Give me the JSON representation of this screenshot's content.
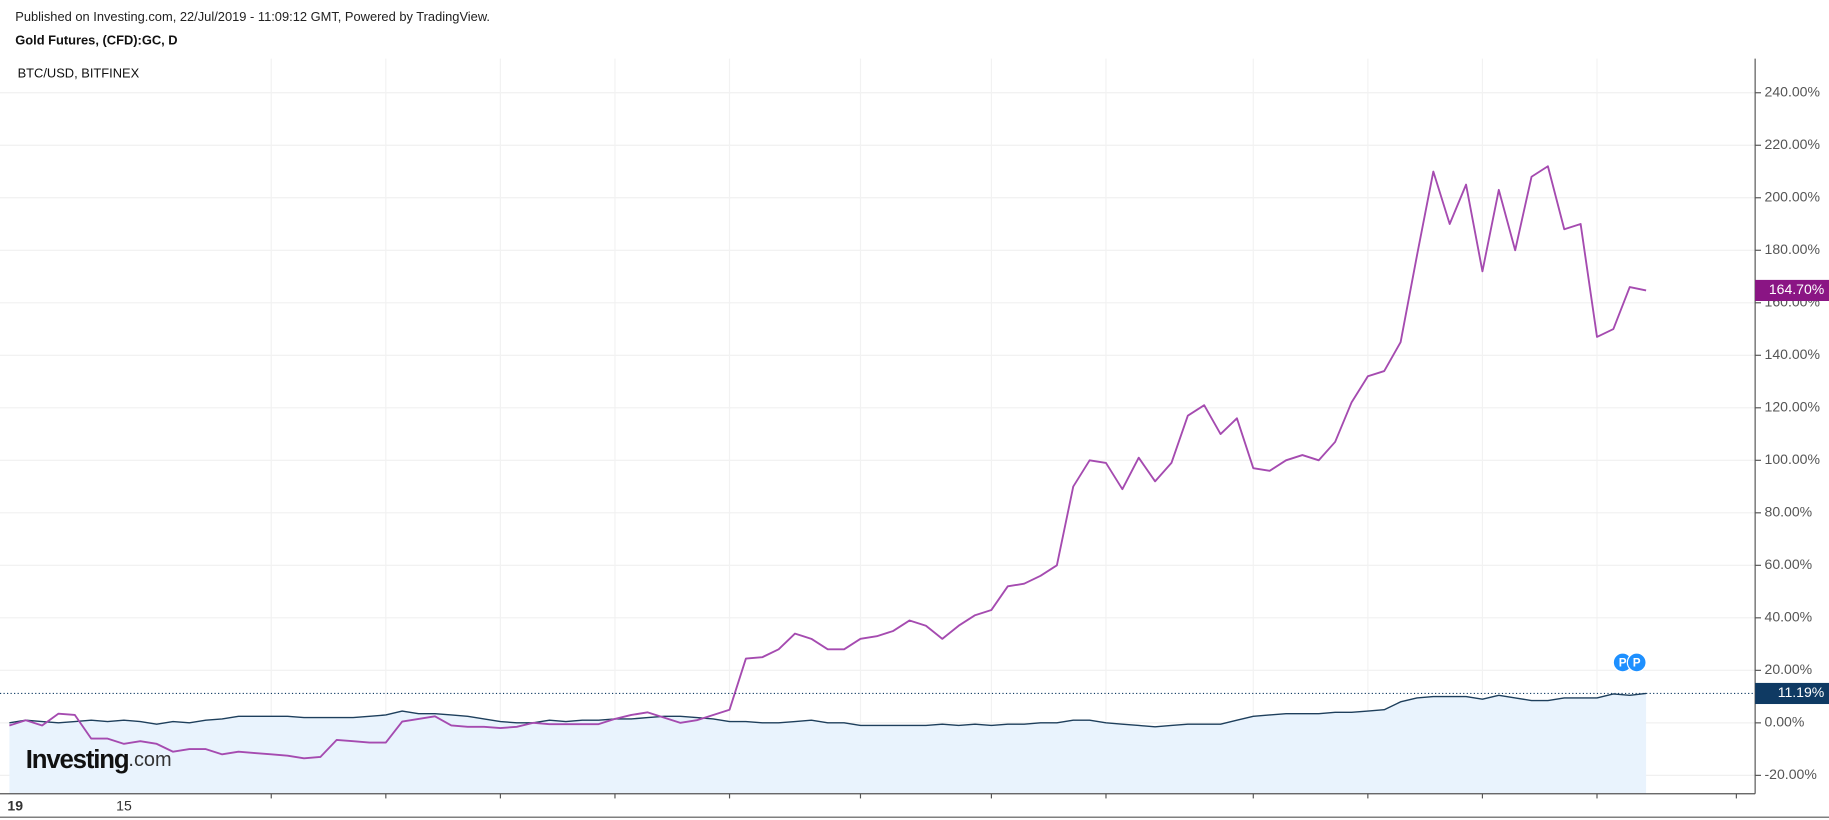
{
  "header": {
    "published": "Published on Investing.com, 22/Jul/2019 - 11:09:12 GMT, Powered by TradingView.",
    "instrument": "Gold Futures, (CFD):GC, D"
  },
  "logo": {
    "name": "Investing",
    "suffix": ".com"
  },
  "markers": [
    "P",
    "P"
  ],
  "chart_data": {
    "type": "line",
    "subtitle": "BTC/USD, BITFINEX",
    "categories": [
      "19",
      null,
      null,
      null,
      null,
      null,
      null,
      "15",
      null,
      null,
      null,
      null,
      null,
      null,
      null,
      null,
      null,
      null,
      null,
      null,
      null,
      null,
      null,
      null,
      null,
      null,
      null,
      null,
      null,
      null,
      null,
      null,
      null,
      null,
      null,
      null,
      null,
      null,
      null,
      null,
      null,
      null,
      null,
      null,
      null,
      null,
      null,
      null,
      null,
      null,
      null,
      null,
      null,
      null,
      null,
      null,
      null,
      null,
      null,
      null,
      null,
      null,
      null,
      null,
      null,
      null,
      null,
      null,
      null,
      null,
      null,
      null,
      null,
      null,
      null,
      null,
      null,
      null,
      null,
      null,
      null,
      null,
      null,
      null,
      null,
      null,
      null,
      null,
      null,
      null,
      null,
      null,
      null,
      null,
      null,
      null,
      null,
      null,
      null,
      null,
      null
    ],
    "series": [
      {
        "name": "BTC/USD, BITFINEX",
        "color": "#a54bb0",
        "label_color": "#8a1584",
        "values": [
          -1,
          1,
          -1,
          3.5,
          3,
          -6,
          -6,
          -8,
          -7,
          -8,
          -11,
          -10,
          -10,
          -12,
          -11,
          -11.5,
          -12,
          -12.5,
          -13.5,
          -13,
          -6.5,
          -7,
          -7.5,
          -7.5,
          0.5,
          1.5,
          2.5,
          -1,
          -1.5,
          -1.5,
          -2,
          -1.5,
          0,
          -0.5,
          -0.5,
          -0.5,
          -0.5,
          1.5,
          3,
          4,
          2,
          0,
          1,
          3,
          5,
          24.5,
          25,
          28,
          34,
          32,
          28,
          28,
          32,
          33,
          35,
          39,
          37,
          32,
          37,
          41,
          43,
          52,
          53,
          56,
          60,
          90,
          100,
          99,
          89,
          101,
          92,
          99,
          117,
          121,
          110,
          116,
          97,
          96,
          100,
          102,
          100,
          107,
          122,
          132,
          134,
          145,
          178,
          210,
          190,
          205,
          172,
          203,
          180,
          208,
          212,
          188,
          190,
          147,
          150,
          166,
          164.7
        ],
        "value_labels": [
          null,
          null,
          null,
          null,
          null,
          null,
          null,
          null,
          null,
          null,
          null,
          null,
          null,
          null,
          null,
          null,
          null,
          null,
          null,
          null,
          null,
          null,
          null,
          null,
          null,
          null,
          null,
          null,
          null,
          null,
          null,
          null,
          null,
          null,
          null,
          null,
          null,
          null,
          null,
          null,
          null,
          null,
          null,
          null,
          null,
          null,
          null,
          null,
          null,
          null,
          null,
          null,
          null,
          null,
          null,
          null,
          null,
          null,
          null,
          null,
          null,
          null,
          null,
          null,
          null,
          null,
          null,
          null,
          null,
          null,
          null,
          null,
          null,
          null,
          null,
          null,
          null,
          null,
          null,
          null,
          null,
          null,
          null,
          null,
          null,
          null,
          null,
          null,
          null,
          null,
          null,
          null,
          null,
          null,
          null,
          null,
          null,
          null,
          null,
          null,
          "164.70%"
        ]
      },
      {
        "name": "Gold Futures, (CFD):GC, D",
        "color": "#1e3f5c",
        "label_color": "#0f3a63",
        "area": "#e9f3fd",
        "values": [
          0,
          1,
          0.5,
          0,
          0.5,
          1,
          0.5,
          1,
          0.5,
          -0.5,
          0.5,
          0,
          1,
          1.5,
          2.5,
          2.5,
          2.5,
          2.5,
          2,
          2,
          2,
          2,
          2.5,
          3,
          4.5,
          3.5,
          3.5,
          3,
          2.5,
          1.5,
          0.5,
          0,
          0,
          1,
          0.5,
          1,
          1,
          1.5,
          1.5,
          2,
          2.5,
          2.5,
          2,
          1.5,
          0.5,
          0.5,
          0,
          0,
          0.5,
          1,
          0,
          0,
          -1,
          -1,
          -1,
          -1,
          -1,
          -0.5,
          -1,
          -0.5,
          -1,
          -0.5,
          -0.5,
          0,
          0,
          1,
          1,
          0,
          -0.5,
          -1,
          -1.5,
          -1,
          -0.5,
          -0.5,
          -0.5,
          1,
          2.5,
          3,
          3.5,
          3.5,
          3.5,
          4,
          4,
          4.5,
          5,
          8,
          9.5,
          10,
          10,
          10,
          9,
          10.5,
          9.5,
          8.5,
          8.5,
          9.5,
          9.5,
          9.5,
          11,
          10.5,
          11.19
        ],
        "value_labels": [
          null,
          null,
          null,
          null,
          null,
          null,
          null,
          null,
          null,
          null,
          null,
          null,
          null,
          null,
          null,
          null,
          null,
          null,
          null,
          null,
          null,
          null,
          null,
          null,
          null,
          null,
          null,
          null,
          null,
          null,
          null,
          null,
          null,
          null,
          null,
          null,
          null,
          null,
          null,
          null,
          null,
          null,
          null,
          null,
          null,
          null,
          null,
          null,
          null,
          null,
          null,
          null,
          null,
          null,
          null,
          null,
          null,
          null,
          null,
          null,
          null,
          null,
          null,
          null,
          null,
          null,
          null,
          null,
          null,
          null,
          null,
          null,
          null,
          null,
          null,
          null,
          null,
          null,
          null,
          null,
          null,
          null,
          null,
          null,
          null,
          null,
          null,
          null,
          null,
          null,
          null,
          null,
          null,
          null,
          null,
          null,
          null,
          null,
          null,
          null,
          "11.19%"
        ]
      }
    ],
    "ylim": [
      -27,
      253
    ],
    "yticks": [
      {
        "value": -20,
        "label": "-20.00%"
      },
      {
        "value": 0,
        "label": "0.00%"
      },
      {
        "value": 20,
        "label": "20.00%"
      },
      {
        "value": 40,
        "label": "40.00%"
      },
      {
        "value": 60,
        "label": "60.00%"
      },
      {
        "value": 80,
        "label": "80.00%"
      },
      {
        "value": 100,
        "label": "100.00%"
      },
      {
        "value": 120,
        "label": "120.00%"
      },
      {
        "value": 140,
        "label": "140.00%"
      },
      {
        "value": 160,
        "label": "160.00%"
      },
      {
        "value": 180,
        "label": "180.00%"
      },
      {
        "value": 200,
        "label": "200.00%"
      },
      {
        "value": 220,
        "label": "220.00%"
      },
      {
        "value": 240,
        "label": "240.00%"
      }
    ],
    "grid": true
  }
}
